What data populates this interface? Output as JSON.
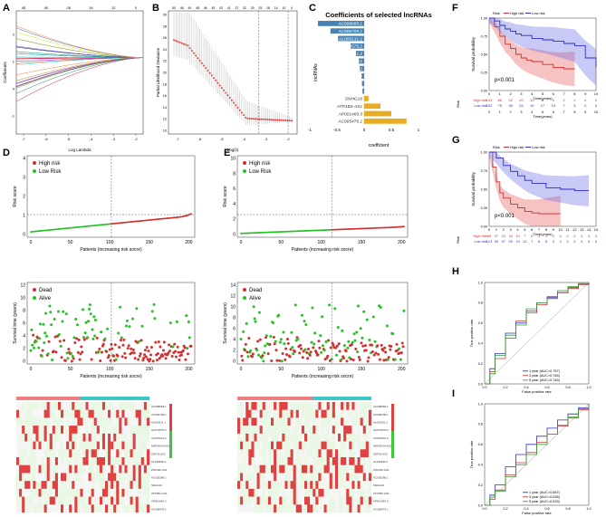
{
  "panels": {
    "A": {
      "letter": "A",
      "xlabel": "Log Lambda",
      "ylabel": "Coefficients",
      "top_ticks": [
        "45",
        "40",
        "28",
        "16",
        "12",
        "0"
      ],
      "x_ticks": [
        "-7",
        "-6",
        "-5",
        "-4",
        "-3",
        "-2"
      ],
      "y_ticks": [
        "-1",
        "0",
        "1",
        "2"
      ]
    },
    "B": {
      "letter": "B",
      "xlabel": "Log(λ)",
      "ylabel": "Partial Likelihood Deviance",
      "top_ticks": [
        "50",
        "48",
        "49",
        "48",
        "46",
        "45",
        "43",
        "41",
        "37",
        "32",
        "29",
        "25",
        "18",
        "14",
        "10",
        "4"
      ],
      "x_ticks": [
        "-7",
        "-6",
        "-5",
        "-4",
        "-3",
        "-2"
      ],
      "y_ticks": [
        "10",
        "12",
        "14",
        "16",
        "18",
        "20",
        "22",
        "24",
        "26",
        "28",
        "30"
      ]
    },
    "C": {
      "letter": "C",
      "title": "Coefficients of selected lncRNAs",
      "ylabel": "lncRNAs",
      "xlabel": "coefficient",
      "x_ticks": [
        "-1",
        "-0.5",
        "0",
        "0.5",
        "1"
      ]
    },
    "D": {
      "letter": "D",
      "risk": {
        "ylabel": "Risk score",
        "xlabel": "Patients (increasing risk socre)",
        "legend": [
          "High risk",
          "Low Risk"
        ],
        "x_ticks": [
          "0",
          "50",
          "100",
          "150",
          "200"
        ],
        "y_ticks": [
          "0",
          "1",
          "2",
          "3",
          "4"
        ]
      },
      "surv": {
        "ylabel": "Survival time (years)",
        "xlabel": "Patients (increasing risk socre)",
        "legend": [
          "Dead",
          "Alive"
        ],
        "x_ticks": [
          "0",
          "50",
          "100",
          "150",
          "200"
        ],
        "y_ticks": [
          "0",
          "2",
          "4",
          "6",
          "8",
          "10",
          "12"
        ]
      }
    },
    "E": {
      "letter": "E",
      "risk": {
        "ylabel": "Risk score",
        "xlabel": "Patients (increasing risk socre)",
        "legend": [
          "High risk",
          "Low Risk"
        ],
        "x_ticks": [
          "0",
          "50",
          "100",
          "150",
          "200"
        ],
        "y_ticks": [
          "0",
          "2",
          "4",
          "6",
          "8",
          "10"
        ]
      },
      "surv": {
        "ylabel": "Survival time (years)",
        "xlabel": "Patients (increasing risk socre)",
        "legend": [
          "Dead",
          "Alive"
        ],
        "x_ticks": [
          "0",
          "50",
          "100",
          "150",
          "200"
        ],
        "y_ticks": [
          "0",
          "2",
          "4",
          "6",
          "8",
          "10",
          "12",
          "14"
        ]
      }
    },
    "F": {
      "letter": "F",
      "legend_title": "Risk",
      "legend": [
        "High risk",
        "Low risk"
      ],
      "ylabel": "Survival probability",
      "xlabel": "Time(years)",
      "pvalue": "p<0.001",
      "x_ticks": [
        "0",
        "1",
        "2",
        "3",
        "4",
        "5",
        "6",
        "7",
        "8",
        "9",
        "10"
      ],
      "y_ticks": [
        "0.00",
        "0.25",
        "0.50",
        "0.75",
        "1.00"
      ],
      "table_ylabel": "Risk",
      "table_xlabel": "Time(years)",
      "table_rows": [
        {
          "name": "High risk",
          "values": [
            "102",
            "66",
            "32",
            "20",
            "10",
            "8",
            "3",
            "2",
            "1",
            "0",
            "0"
          ]
        },
        {
          "name": "Low risk",
          "values": [
            "102",
            "75",
            "38",
            "25",
            "19",
            "17",
            "15",
            "7",
            "3",
            "0",
            "0"
          ]
        }
      ]
    },
    "G": {
      "letter": "G",
      "legend_title": "Risk",
      "legend": [
        "High risk",
        "Low risk"
      ],
      "ylabel": "Survival probability",
      "xlabel": "Time(years)",
      "pvalue": "p<0.001",
      "x_ticks": [
        "0",
        "1",
        "2",
        "3",
        "4",
        "5",
        "6",
        "7",
        "8",
        "9",
        "10",
        "11",
        "12",
        "13",
        "14",
        "15"
      ],
      "y_ticks": [
        "0.00",
        "0.25",
        "0.50",
        "0.75",
        "1.00"
      ],
      "table_ylabel": "Risk",
      "table_rows": [
        {
          "name": "High risk",
          "values": [
            "89",
            "37",
            "23",
            "16",
            "10",
            "7",
            "6",
            "4",
            "4",
            "3",
            "0",
            "0",
            "0",
            "0",
            "0",
            "0"
          ]
        },
        {
          "name": "Low risk",
          "values": [
            "113",
            "90",
            "47",
            "25",
            "19",
            "12",
            "7",
            "6",
            "5",
            "3",
            "3",
            "3",
            "0",
            "0",
            "0",
            "0"
          ]
        }
      ]
    },
    "H": {
      "letter": "H",
      "xlabel": "False positive rate",
      "ylabel": "True positive rate",
      "legend": [
        "1 year (AUC=0.757)",
        "3 year (AUC=0.746)",
        "5 year (AUC=0.746)"
      ],
      "ticks": [
        "0.0",
        "0.2",
        "0.4",
        "0.6",
        "0.8",
        "1.0"
      ]
    },
    "I": {
      "letter": "I",
      "xlabel": "False positive rate",
      "ylabel": "True positive rate",
      "legend": [
        "1 year (AUC=0.687)",
        "3 year (AUC=0.638)",
        "5 year (AUC=0.633)"
      ],
      "ticks": [
        "0.0",
        "0.2",
        "0.4",
        "0.6",
        "0.8",
        "1.0"
      ]
    }
  },
  "colors": {
    "high": "#d32f2f",
    "low": "#2b2bd0",
    "risk_low": "#22c322",
    "bar_neg": "#4682b4",
    "bar_pos": "#e6ad20",
    "heat_low_bar": "#3cc8c8",
    "heat_high_bar": "#f08080",
    "roc1": "#2f2fd0",
    "roc3": "#d23232",
    "roc5": "#2fa02f"
  },
  "chart_data": [
    {
      "panel": "C",
      "type": "bar",
      "orientation": "horizontal",
      "title": "Coefficients of selected lncRNAs",
      "xlabel": "coefficient",
      "ylabel": "lncRNAs",
      "categories": [
        "AC008669.1",
        "AC006709.1",
        "AL009131.1",
        "AC073575.2",
        "AC097641.2",
        "MAP3K34-AS1",
        "ZNF32-AS2",
        "AL139295.2",
        "ZNF436-AS1",
        "AC025280.1",
        "SNHG16",
        "ATP1B3-AS1",
        "AP001469.3",
        "AC005479.1"
      ],
      "values": [
        -0.85,
        -0.62,
        -0.48,
        -0.25,
        -0.15,
        -0.1,
        -0.08,
        -0.05,
        -0.04,
        -0.03,
        0.08,
        0.3,
        0.5,
        0.78
      ],
      "xlim": [
        -1,
        1
      ]
    },
    {
      "panel": "F",
      "type": "line",
      "title": "",
      "xlabel": "Time(years)",
      "ylabel": "Survival probability",
      "xlim": [
        0,
        10
      ],
      "ylim": [
        0,
        1
      ],
      "series": [
        {
          "name": "High risk",
          "x": [
            0,
            0.5,
            1,
            1.5,
            2,
            2.5,
            3,
            3.5,
            4,
            5,
            6,
            7,
            8
          ],
          "y": [
            1,
            0.88,
            0.75,
            0.64,
            0.58,
            0.5,
            0.45,
            0.42,
            0.4,
            0.36,
            0.32,
            0.3,
            0.3
          ]
        },
        {
          "name": "Low risk",
          "x": [
            0,
            0.5,
            1,
            1.5,
            2,
            2.5,
            3,
            4,
            5,
            6,
            7,
            8,
            9,
            10
          ],
          "y": [
            1,
            0.96,
            0.9,
            0.85,
            0.82,
            0.78,
            0.76,
            0.72,
            0.7,
            0.68,
            0.65,
            0.62,
            0.45,
            0.32
          ]
        }
      ]
    },
    {
      "panel": "G",
      "type": "line",
      "title": "",
      "xlabel": "Time(years)",
      "ylabel": "Survival probability",
      "xlim": [
        0,
        15
      ],
      "ylim": [
        0,
        1
      ],
      "series": [
        {
          "name": "High risk",
          "x": [
            0,
            0.5,
            1,
            1.5,
            2,
            3,
            4,
            5,
            6,
            7,
            8,
            9,
            10
          ],
          "y": [
            1,
            0.8,
            0.6,
            0.45,
            0.38,
            0.3,
            0.25,
            0.2,
            0.18,
            0.17,
            0.17,
            0.17,
            0.17
          ]
        },
        {
          "name": "Low risk",
          "x": [
            0,
            1,
            2,
            3,
            4,
            5,
            6,
            8,
            10,
            12,
            14
          ],
          "y": [
            1,
            0.92,
            0.82,
            0.74,
            0.68,
            0.62,
            0.58,
            0.52,
            0.5,
            0.48,
            0.48
          ]
        }
      ]
    },
    {
      "panel": "H",
      "type": "line",
      "title": "",
      "xlabel": "False positive rate",
      "ylabel": "True positive rate",
      "xlim": [
        0,
        1
      ],
      "ylim": [
        0,
        1
      ],
      "series": [
        {
          "name": "1 year (AUC=0.757)",
          "x": [
            0,
            0.05,
            0.1,
            0.2,
            0.3,
            0.4,
            0.5,
            0.6,
            0.7,
            0.8,
            0.9,
            1
          ],
          "y": [
            0,
            0.15,
            0.3,
            0.5,
            0.6,
            0.72,
            0.8,
            0.85,
            0.9,
            0.95,
            0.98,
            1
          ]
        },
        {
          "name": "3 year (AUC=0.746)",
          "x": [
            0,
            0.05,
            0.1,
            0.2,
            0.3,
            0.4,
            0.5,
            0.6,
            0.7,
            0.8,
            0.9,
            1
          ],
          "y": [
            0,
            0.12,
            0.25,
            0.45,
            0.62,
            0.7,
            0.78,
            0.86,
            0.9,
            0.94,
            0.98,
            1
          ]
        },
        {
          "name": "5 year (AUC=0.746)",
          "x": [
            0,
            0.05,
            0.1,
            0.2,
            0.3,
            0.4,
            0.5,
            0.6,
            0.7,
            0.8,
            0.9,
            1
          ],
          "y": [
            0,
            0.1,
            0.28,
            0.48,
            0.58,
            0.74,
            0.8,
            0.84,
            0.92,
            0.96,
            0.99,
            1
          ]
        }
      ]
    },
    {
      "panel": "I",
      "type": "line",
      "title": "",
      "xlabel": "False positive rate",
      "ylabel": "True positive rate",
      "xlim": [
        0,
        1
      ],
      "ylim": [
        0,
        1
      ],
      "series": [
        {
          "name": "1 year (AUC=0.687)",
          "x": [
            0,
            0.05,
            0.1,
            0.2,
            0.3,
            0.4,
            0.5,
            0.6,
            0.7,
            0.8,
            0.9,
            1
          ],
          "y": [
            0,
            0.1,
            0.2,
            0.38,
            0.5,
            0.6,
            0.68,
            0.76,
            0.84,
            0.9,
            0.96,
            1
          ]
        },
        {
          "name": "3 year (AUC=0.638)",
          "x": [
            0,
            0.05,
            0.1,
            0.2,
            0.3,
            0.4,
            0.5,
            0.6,
            0.7,
            0.8,
            0.9,
            1
          ],
          "y": [
            0,
            0.06,
            0.15,
            0.3,
            0.42,
            0.52,
            0.62,
            0.7,
            0.78,
            0.86,
            0.94,
            1
          ]
        },
        {
          "name": "5 year (AUC=0.633)",
          "x": [
            0,
            0.05,
            0.1,
            0.2,
            0.3,
            0.4,
            0.5,
            0.6,
            0.7,
            0.8,
            0.9,
            1
          ],
          "y": [
            0,
            0.08,
            0.14,
            0.28,
            0.4,
            0.5,
            0.6,
            0.7,
            0.79,
            0.87,
            0.95,
            1
          ]
        }
      ]
    }
  ]
}
